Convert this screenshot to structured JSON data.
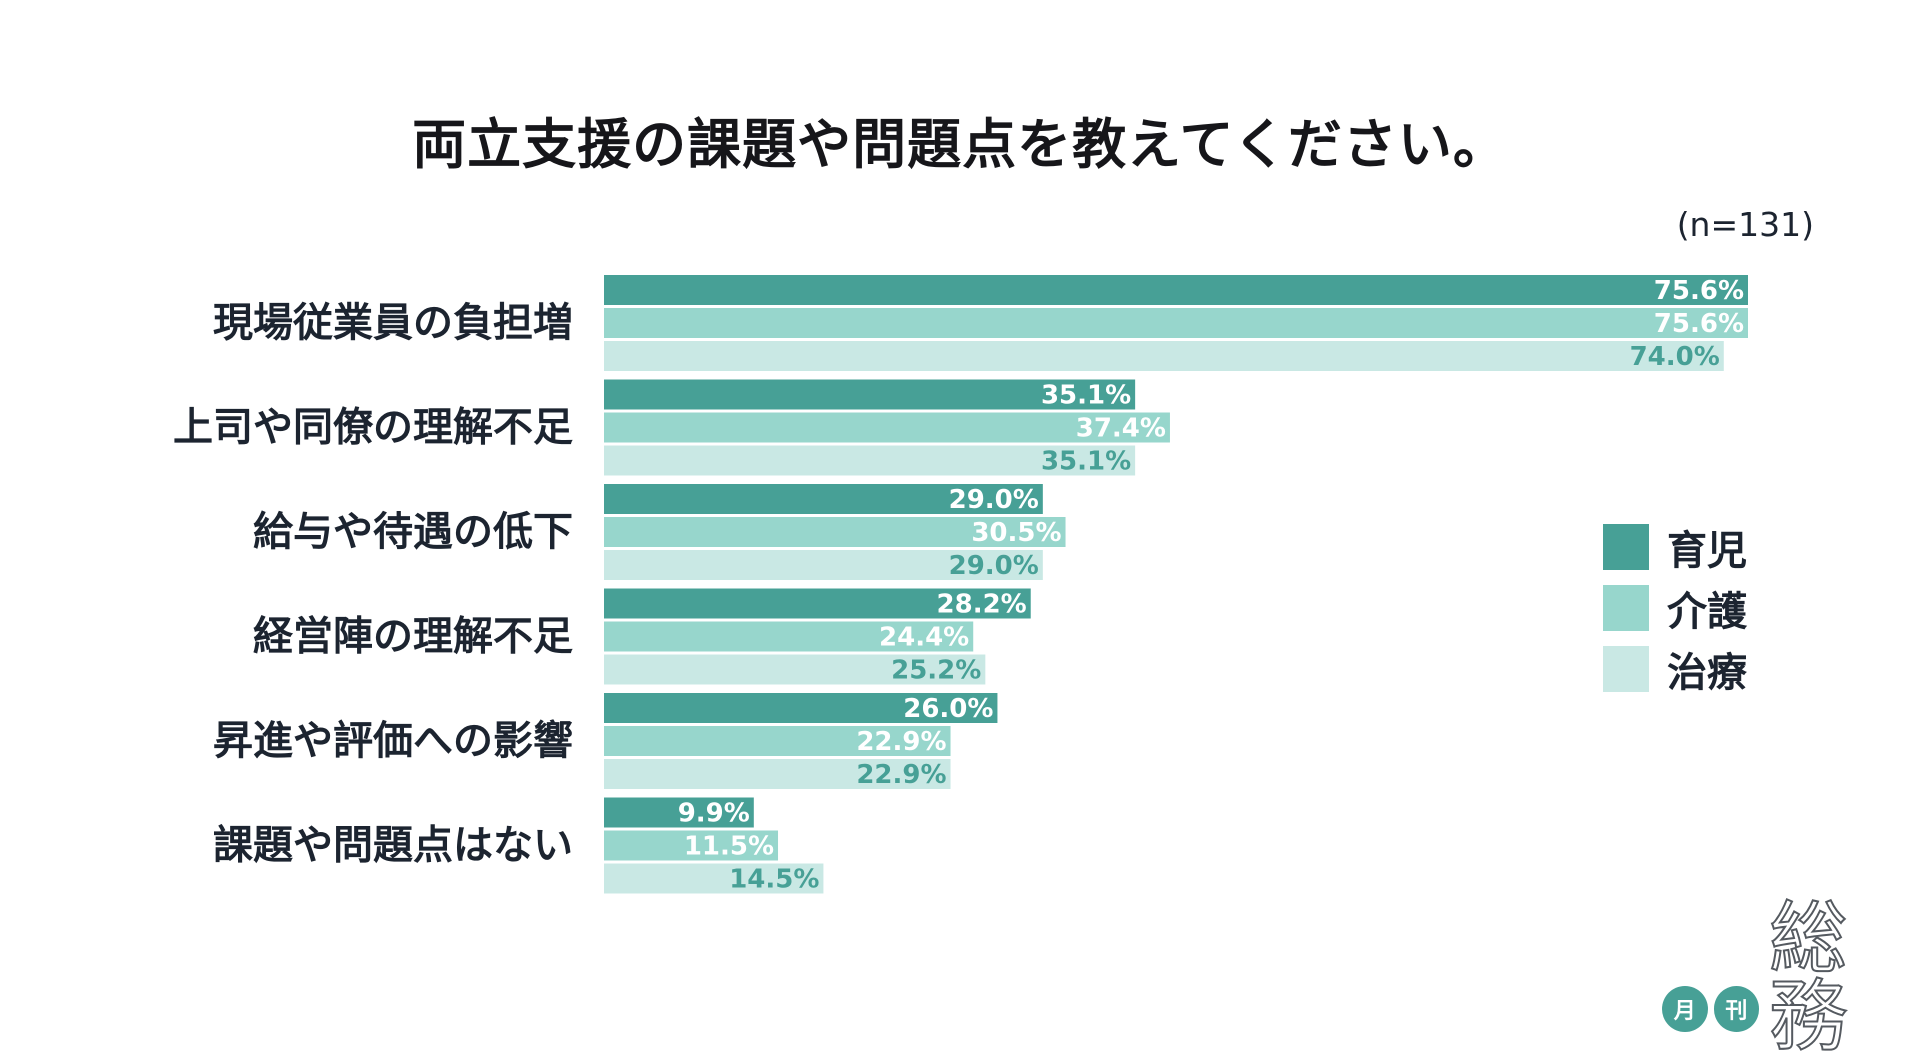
{
  "chart_data": {
    "type": "bar",
    "orientation": "horizontal",
    "title": "両立支援の課題や問題点を教えてください。",
    "sample_size": "(n=131)",
    "categories": [
      "現場従業員の負担増",
      "上司や同僚の理解不足",
      "給与や待遇の低下",
      "経営陣の理解不足",
      "昇進や評価への影響",
      "課題や問題点はない"
    ],
    "series": [
      {
        "name": "育児",
        "color": "#47a096",
        "label_color": "#ffffff",
        "values": [
          75.6,
          35.1,
          29.0,
          28.2,
          26.0,
          9.9
        ]
      },
      {
        "name": "介護",
        "color": "#97d6cc",
        "label_color": "#ffffff",
        "values": [
          75.6,
          37.4,
          30.5,
          24.4,
          22.9,
          11.5
        ]
      },
      {
        "name": "治療",
        "color": "#c9e8e4",
        "label_color": "#47a096",
        "values": [
          74.0,
          35.1,
          29.0,
          25.2,
          22.9,
          14.5
        ]
      }
    ],
    "value_suffix": "%",
    "xlim": [
      0,
      75.6
    ],
    "grid": false,
    "legend_position": "right"
  },
  "brand": {
    "mark_1": "月",
    "mark_2": "刊",
    "name": "総務"
  }
}
